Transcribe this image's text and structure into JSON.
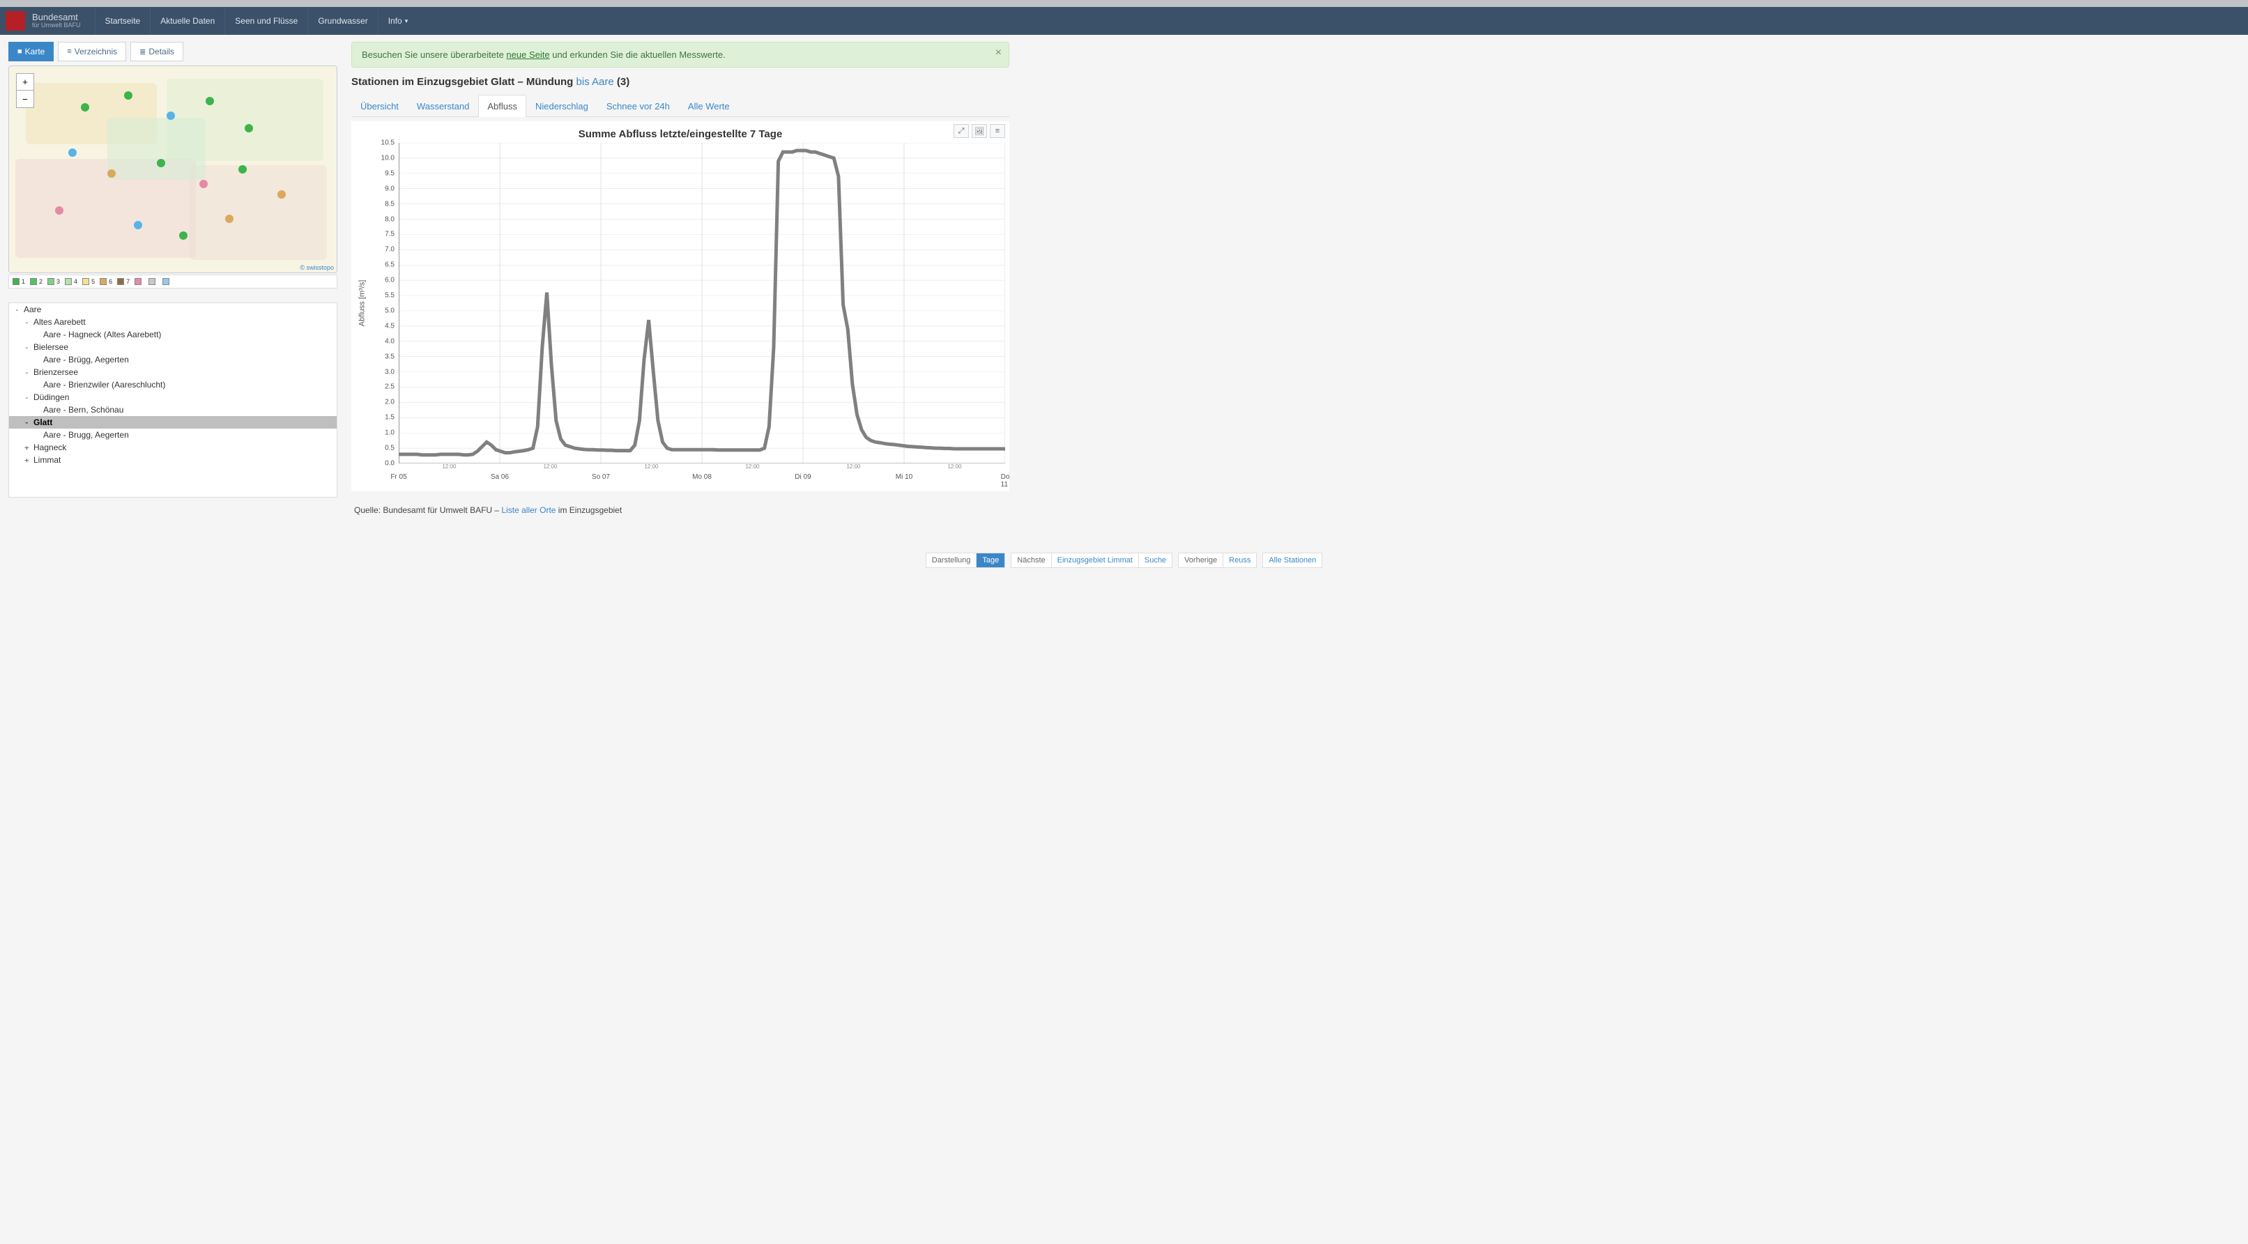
{
  "navbar": {
    "brand_line1": "Bundesamt",
    "brand_line2": "für Umwelt BAFU",
    "items": [
      {
        "label": "Startseite"
      },
      {
        "label": "Aktuelle Daten"
      },
      {
        "label": "Seen und Flüsse"
      },
      {
        "label": "Grundwasser"
      },
      {
        "label": "Info",
        "chevron": true
      }
    ]
  },
  "left_tabs": [
    {
      "icon": "■",
      "label": "Karte"
    },
    {
      "icon": "≡",
      "label": "Verzeichnis"
    },
    {
      "icon": "≣",
      "label": "Details"
    }
  ],
  "map": {
    "attribution": "© swisstopo",
    "legend": [
      {
        "color": "#3cb44b",
        "label": "1"
      },
      {
        "color": "#52c261",
        "label": "2"
      },
      {
        "color": "#7bd289",
        "label": "3"
      },
      {
        "color": "#b5e3a8",
        "label": "4"
      },
      {
        "color": "#f7e08c",
        "label": "5"
      },
      {
        "color": "#d9a95e",
        "label": "6"
      },
      {
        "color": "#8c6e46",
        "label": "7"
      },
      {
        "color": "#e48aa8",
        "label": " "
      },
      {
        "color": "#c8c8c8",
        "label": " "
      },
      {
        "color": "#9ac8e8",
        "label": " "
      }
    ]
  },
  "tree": [
    {
      "lvl": 1,
      "exp": "-",
      "label": "Aare",
      "sel": false
    },
    {
      "lvl": 2,
      "exp": "-",
      "label": "Altes Aarebett",
      "sel": false
    },
    {
      "lvl": 3,
      "exp": "",
      "label": "Aare - Hagneck (Altes Aarebett)",
      "sel": false
    },
    {
      "lvl": 2,
      "exp": "-",
      "label": "Bielersee",
      "sel": false
    },
    {
      "lvl": 3,
      "exp": "",
      "label": "Aare - Brügg, Aegerten",
      "sel": false
    },
    {
      "lvl": 2,
      "exp": "-",
      "label": "Brienzersee",
      "sel": false
    },
    {
      "lvl": 3,
      "exp": "",
      "label": "Aare - Brienzwiler (Aareschlucht)",
      "sel": false
    },
    {
      "lvl": 2,
      "exp": "-",
      "label": "Düdingen",
      "sel": false
    },
    {
      "lvl": 3,
      "exp": "",
      "label": "Aare - Bern, Schönau",
      "sel": false
    },
    {
      "lvl": 2,
      "exp": "-",
      "label": "Glatt",
      "sel": true
    },
    {
      "lvl": 3,
      "exp": "",
      "label": "Aare - Brugg, Aegerten",
      "sel": false
    },
    {
      "lvl": 2,
      "exp": "+",
      "label": "Hagneck",
      "sel": false
    },
    {
      "lvl": 2,
      "exp": "+",
      "label": "Limmat",
      "sel": false
    }
  ],
  "info_banner": {
    "text_before": "Besuchen Sie unsere überarbeitete ",
    "link_text": "neue Seite",
    "text_after": " und erkunden Sie die aktuellen Messwerte."
  },
  "page_header": {
    "prefix": "Stationen im Einzugsgebiet Glatt – Mündung",
    "link": "bis Aare",
    "suffix": " (3)"
  },
  "content_tabs": [
    {
      "label": "Übersicht"
    },
    {
      "label": "Wasserstand"
    },
    {
      "label": "Abfluss"
    },
    {
      "label": "Niederschlag"
    },
    {
      "label": "Schnee vor 24h"
    },
    {
      "label": "Alle Werte"
    }
  ],
  "content_tab_active": 2,
  "chart": {
    "title": "Summe Abfluss letzte/eingestellte 7 Tage",
    "type": "line",
    "y_label": "Abfluss [m³/s]",
    "y_min": 0,
    "y_max": 10.5,
    "y_ticks": [
      0.0,
      0.5,
      1.0,
      1.5,
      2.0,
      2.5,
      3.0,
      3.5,
      4.0,
      4.5,
      5.0,
      5.5,
      6.0,
      6.5,
      7.0,
      7.5,
      8.0,
      8.5,
      9.0,
      9.5,
      10.0,
      10.5
    ],
    "x_major_ticks": [
      "Fr 05",
      "Sa 06",
      "So 07",
      "Mo 08",
      "Di 09",
      "Mi 10",
      "Do 11"
    ],
    "x_minor_label": "12:00",
    "stroke_color": "#808080",
    "stroke_width": 2,
    "grid_color": "#dcdcdc",
    "axis_color": "#888888",
    "background": "#ffffff",
    "series": [
      0.3,
      0.3,
      0.3,
      0.3,
      0.3,
      0.28,
      0.28,
      0.28,
      0.28,
      0.3,
      0.3,
      0.3,
      0.3,
      0.3,
      0.28,
      0.28,
      0.3,
      0.4,
      0.55,
      0.7,
      0.6,
      0.45,
      0.4,
      0.35,
      0.35,
      0.38,
      0.4,
      0.42,
      0.45,
      0.5,
      1.2,
      3.8,
      5.6,
      3.2,
      1.4,
      0.8,
      0.6,
      0.55,
      0.5,
      0.48,
      0.46,
      0.45,
      0.45,
      0.44,
      0.44,
      0.43,
      0.43,
      0.42,
      0.42,
      0.42,
      0.42,
      0.6,
      1.4,
      3.4,
      4.7,
      3.0,
      1.4,
      0.7,
      0.5,
      0.45,
      0.45,
      0.45,
      0.45,
      0.45,
      0.45,
      0.45,
      0.45,
      0.45,
      0.45,
      0.44,
      0.44,
      0.44,
      0.44,
      0.44,
      0.44,
      0.44,
      0.44,
      0.44,
      0.44,
      0.5,
      1.2,
      3.8,
      9.9,
      10.2,
      10.2,
      10.2,
      10.25,
      10.25,
      10.25,
      10.2,
      10.2,
      10.15,
      10.1,
      10.05,
      10.0,
      9.4,
      5.2,
      4.4,
      2.6,
      1.6,
      1.1,
      0.85,
      0.75,
      0.7,
      0.68,
      0.65,
      0.63,
      0.62,
      0.6,
      0.58,
      0.56,
      0.55,
      0.54,
      0.53,
      0.52,
      0.51,
      0.5,
      0.5,
      0.49,
      0.49,
      0.48,
      0.48,
      0.48,
      0.48,
      0.48,
      0.48,
      0.48,
      0.48,
      0.48,
      0.48,
      0.48,
      0.48
    ]
  },
  "footnote": {
    "text_before": "Quelle: Bundesamt für Umwelt BAFU – ",
    "link": "Liste aller Orte",
    "text_after": " im Einzugsgebiet"
  },
  "footer": {
    "groups": [
      [
        {
          "label": "Darstellung",
          "link": false
        },
        {
          "label": "Tage",
          "active": true
        }
      ],
      [
        {
          "label": "Nächste",
          "link": false
        },
        {
          "label": "Einzugsgebiet Limmat",
          "link": true
        },
        {
          "label": "Suche",
          "link": true
        }
      ],
      [
        {
          "label": "Vorherige",
          "link": false
        },
        {
          "label": "Reuss",
          "link": true
        }
      ],
      [
        {
          "label": "Alle Stationen",
          "link": true
        }
      ]
    ]
  }
}
